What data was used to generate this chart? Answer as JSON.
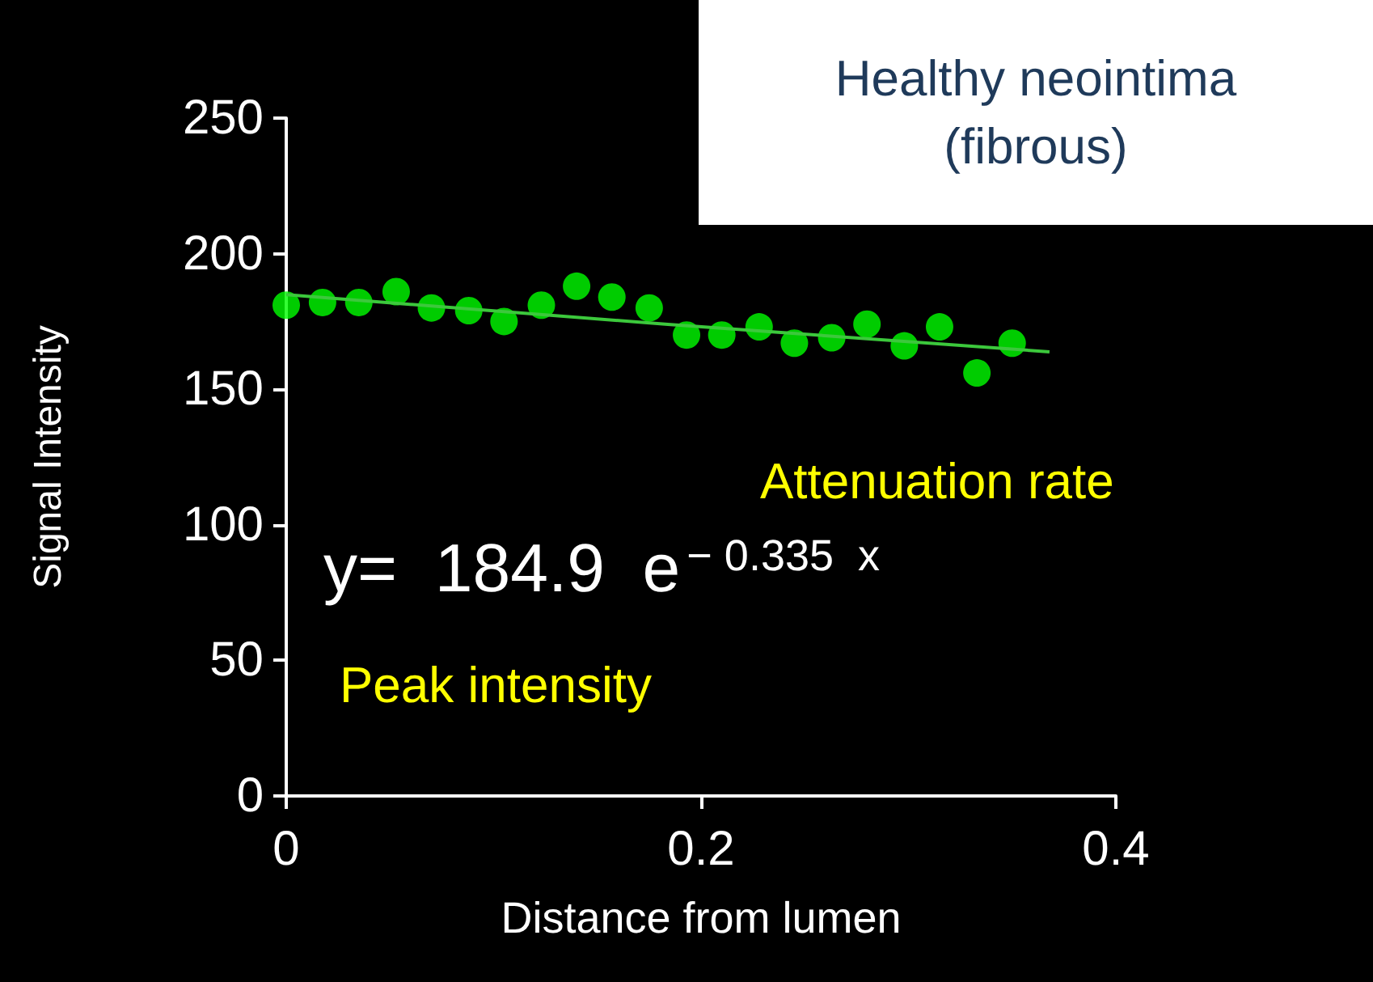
{
  "chart_data": {
    "type": "scatter",
    "title": "Healthy neointima (fibrous)",
    "xlabel": "Distance from lumen",
    "ylabel": "Signal Intensity",
    "annotations": [
      "y=  184.9  e$^{− 0.335  x}$",
      "Attenuation rate",
      "Peak intensity"
    ],
    "series": [
      {
        "color": "#00ff00",
        "marker": "circle",
        "x": [
          0,
          0.0175,
          0.035,
          0.053,
          0.07,
          0.088,
          0.105,
          0.123,
          0.14,
          0.157,
          0.175,
          0.193,
          0.21,
          0.228,
          0.245,
          0.263,
          0.28,
          0.298,
          0.315,
          0.333,
          0.35
        ],
        "values": [
          181,
          182,
          182,
          186,
          180,
          179,
          175,
          181,
          188,
          184,
          180,
          170,
          170,
          173,
          167,
          169,
          174,
          166,
          173,
          156,
          167
        ]
      },
      {
        "type": "line",
        "color": "#3cc83c",
        "marker": "none",
        "x": [
          0,
          0.184,
          0.368
        ],
        "values": [
          184.9,
          173.9,
          163.8
        ]
      }
    ],
    "xlim": [
      0,
      0.4
    ],
    "xticks": [
      0,
      0.2,
      0.4
    ],
    "ylim": [
      0,
      250
    ],
    "yticks": [
      0,
      50,
      100,
      150,
      200,
      250
    ],
    "grid": false
  }
}
